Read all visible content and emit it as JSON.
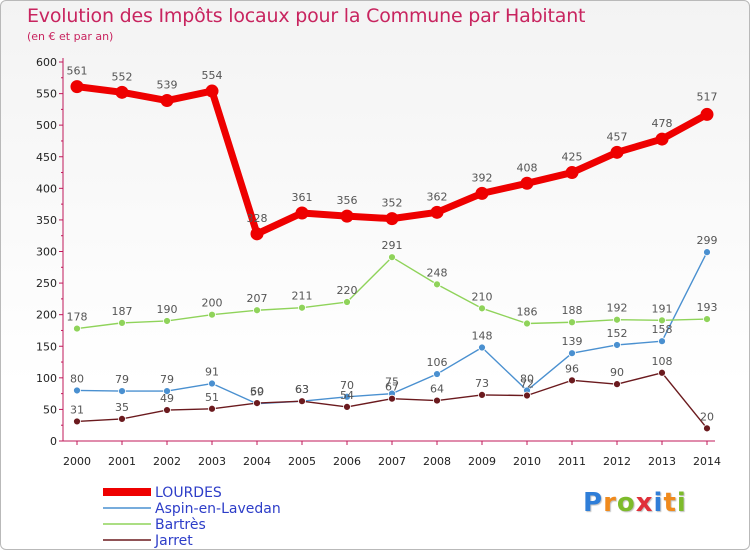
{
  "chart_data": {
    "type": "line",
    "title": "Evolution des Impôts locaux pour la Commune par Habitant",
    "subtitle": "(en € et par an)",
    "xlabel": "",
    "ylabel": "",
    "x": [
      "2000",
      "2001",
      "2002",
      "2003",
      "2004",
      "2005",
      "2006",
      "2007",
      "2008",
      "2009",
      "2010",
      "2011",
      "2012",
      "2013",
      "2014"
    ],
    "ylim": [
      0,
      600
    ],
    "yticks": [
      0,
      50,
      100,
      150,
      200,
      250,
      300,
      350,
      400,
      450,
      500,
      550,
      600
    ],
    "grid": false,
    "legend_position": "bottom-left",
    "series": [
      {
        "name": "LOURDES",
        "color": "#ee0000",
        "emphasis": true,
        "values": [
          561,
          552,
          539,
          554,
          328,
          361,
          356,
          352,
          362,
          392,
          408,
          425,
          457,
          478,
          517
        ]
      },
      {
        "name": "Aspin-en-Lavedan",
        "color": "#4a90d0",
        "emphasis": false,
        "values": [
          80,
          79,
          79,
          91,
          59,
          63,
          70,
          75,
          106,
          148,
          80,
          139,
          152,
          158,
          299
        ]
      },
      {
        "name": "Bartrès",
        "color": "#8fd35a",
        "emphasis": false,
        "values": [
          178,
          187,
          190,
          200,
          207,
          211,
          220,
          291,
          248,
          210,
          186,
          188,
          192,
          191,
          193
        ]
      },
      {
        "name": "Jarret",
        "color": "#6b1a1e",
        "emphasis": false,
        "values": [
          31,
          35,
          49,
          51,
          60,
          63,
          54,
          67,
          64,
          73,
          72,
          96,
          90,
          108,
          20
        ]
      }
    ]
  },
  "logo": {
    "text": "Proxiti",
    "letters": [
      {
        "char": "P",
        "color": "#2f7ed8"
      },
      {
        "char": "r",
        "color": "#f08a1c"
      },
      {
        "char": "o",
        "color": "#7dbb2b"
      },
      {
        "char": "x",
        "color": "#e0303a"
      },
      {
        "char": "i",
        "color": "#2f7ed8"
      },
      {
        "char": "t",
        "color": "#f08a1c"
      },
      {
        "char": "i",
        "color": "#7dbb2b"
      }
    ]
  }
}
